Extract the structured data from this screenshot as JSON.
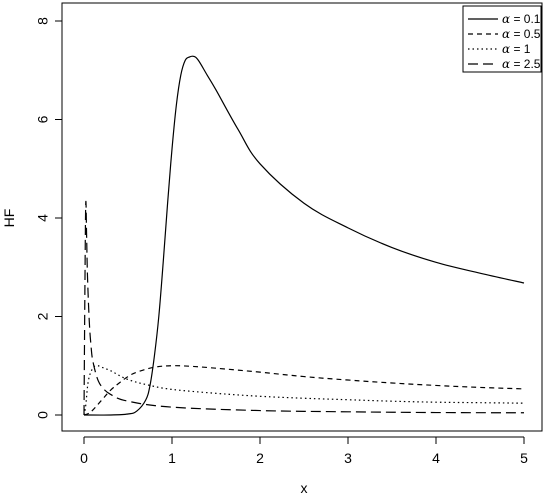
{
  "chart_data": {
    "type": "line",
    "title": "",
    "xlabel": "x",
    "ylabel": "HF",
    "xlim": [
      0,
      5
    ],
    "ylim": [
      0,
      8
    ],
    "x_ticks": [
      0,
      1,
      2,
      3,
      4,
      5
    ],
    "y_ticks": [
      0,
      2,
      4,
      6,
      8
    ],
    "grid": false,
    "legend": {
      "position": "top-right",
      "entries": [
        {
          "symbol": "α",
          "label": " = 0.1",
          "linestyle": "solid"
        },
        {
          "symbol": "α",
          "label": " = 0.5",
          "linestyle": "dashed"
        },
        {
          "symbol": "α",
          "label": " = 1",
          "linestyle": "dotted"
        },
        {
          "symbol": "α",
          "label": " = 2.5",
          "linestyle": "longdash"
        }
      ]
    },
    "series": [
      {
        "name": "α = 0.1",
        "linestyle": "solid",
        "x": [
          0.0,
          0.3,
          0.5,
          0.6,
          0.7,
          0.75,
          0.8,
          0.85,
          0.9,
          0.95,
          1.0,
          1.05,
          1.1,
          1.15,
          1.2,
          1.25,
          1.3,
          1.4,
          1.5,
          1.75,
          2.0,
          2.5,
          3.0,
          3.5,
          4.0,
          4.5,
          5.0
        ],
        "y": [
          0.0,
          0.0,
          0.02,
          0.08,
          0.3,
          0.6,
          1.2,
          2.0,
          3.1,
          4.3,
          5.4,
          6.3,
          6.9,
          7.2,
          7.27,
          7.28,
          7.2,
          6.9,
          6.6,
          5.8,
          5.1,
          4.3,
          3.8,
          3.4,
          3.1,
          2.88,
          2.68
        ]
      },
      {
        "name": "α = 0.5",
        "linestyle": "dashed",
        "x": [
          0.0,
          0.05,
          0.1,
          0.2,
          0.3,
          0.4,
          0.5,
          0.6,
          0.8,
          1.0,
          1.2,
          1.5,
          2.0,
          2.5,
          3.0,
          3.5,
          4.0,
          4.5,
          5.0
        ],
        "y": [
          0.0,
          0.03,
          0.1,
          0.3,
          0.5,
          0.65,
          0.78,
          0.87,
          0.97,
          1.0,
          0.99,
          0.95,
          0.87,
          0.78,
          0.71,
          0.65,
          0.6,
          0.56,
          0.53
        ]
      },
      {
        "name": "α = 1",
        "linestyle": "dotted",
        "x": [
          0.0,
          0.02,
          0.05,
          0.1,
          0.15,
          0.2,
          0.3,
          0.5,
          0.75,
          1.0,
          1.5,
          2.0,
          2.5,
          3.0,
          3.5,
          4.0,
          4.5,
          5.0
        ],
        "y": [
          0.0,
          0.2,
          0.7,
          0.95,
          1.0,
          0.97,
          0.9,
          0.72,
          0.6,
          0.52,
          0.44,
          0.38,
          0.34,
          0.31,
          0.28,
          0.26,
          0.25,
          0.24
        ]
      },
      {
        "name": "α = 2.5",
        "linestyle": "longdash",
        "x": [
          0.0,
          0.01,
          0.02,
          0.03,
          0.04,
          0.06,
          0.08,
          0.1,
          0.15,
          0.2,
          0.3,
          0.5,
          1.0,
          2.0,
          3.0,
          4.0,
          5.0
        ],
        "y": [
          0.0,
          2.5,
          4.3,
          3.6,
          2.8,
          1.9,
          1.4,
          1.1,
          0.75,
          0.58,
          0.42,
          0.28,
          0.16,
          0.09,
          0.065,
          0.05,
          0.045
        ]
      }
    ]
  }
}
